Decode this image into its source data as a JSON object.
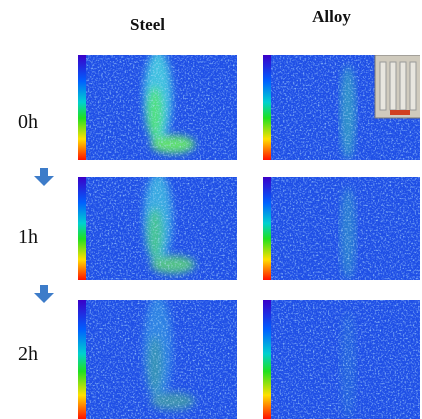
{
  "columns": [
    "Steel",
    "Alloy"
  ],
  "rows": [
    "0h",
    "1h",
    "2h"
  ]
}
